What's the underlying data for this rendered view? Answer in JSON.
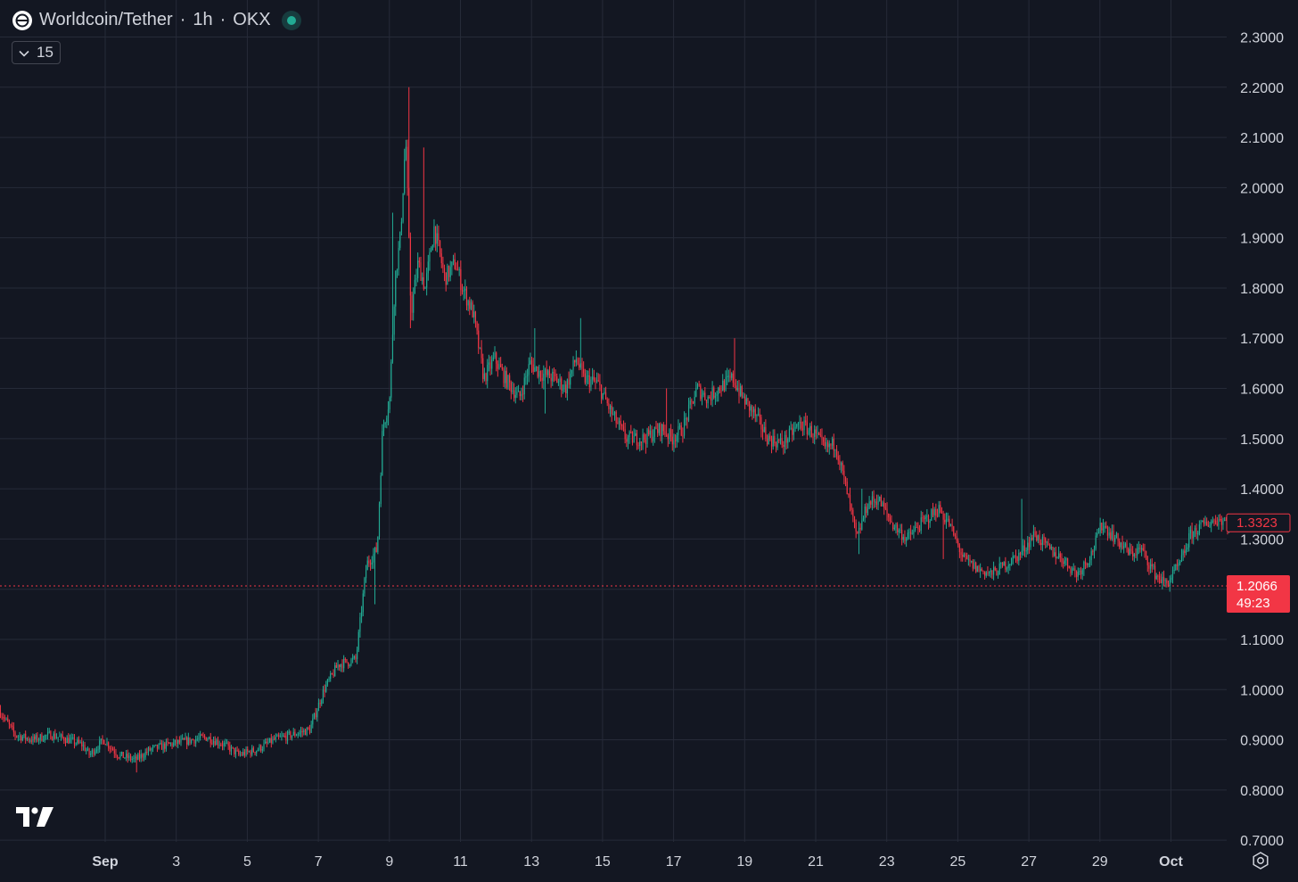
{
  "legend": {
    "symbol": "Worldcoin/Tether",
    "separator1": "·",
    "interval": "1h",
    "separator2": "·",
    "exchange": "OKX",
    "indicators_count": "15"
  },
  "price_tags": {
    "last_price": "1.3323",
    "crosshair_price": "1.2066",
    "countdown": "49:23"
  },
  "colors": {
    "background": "#131722",
    "grid": "#262b38",
    "up": "#22ab94",
    "down": "#f23645",
    "text": "#d1d4dc"
  },
  "icons": [
    "worldcoin-icon",
    "chevron-down-icon",
    "tradingview-logo-icon",
    "settings-icon",
    "status-dot-icon"
  ],
  "chart_data": {
    "type": "candlestick",
    "title": "Worldcoin/Tether · 1h · OKX",
    "y_ticks": [
      "2.3000",
      "2.2000",
      "2.1000",
      "2.0000",
      "1.9000",
      "1.8000",
      "1.7000",
      "1.6000",
      "1.5000",
      "1.4000",
      "1.3000",
      "1.1000",
      "1.0000",
      "0.9000",
      "0.8000",
      "0.7000"
    ],
    "x_ticks": [
      {
        "label": "Sep",
        "day": 1,
        "bold": true
      },
      {
        "label": "3",
        "day": 3
      },
      {
        "label": "5",
        "day": 5
      },
      {
        "label": "7",
        "day": 7
      },
      {
        "label": "9",
        "day": 9
      },
      {
        "label": "11",
        "day": 11
      },
      {
        "label": "13",
        "day": 13
      },
      {
        "label": "15",
        "day": 15
      },
      {
        "label": "17",
        "day": 17
      },
      {
        "label": "19",
        "day": 19
      },
      {
        "label": "21",
        "day": 21
      },
      {
        "label": "23",
        "day": 23
      },
      {
        "label": "25",
        "day": 25
      },
      {
        "label": "27",
        "day": 27
      },
      {
        "label": "29",
        "day": 29
      },
      {
        "label": "Oct",
        "day": 31,
        "bold": true
      }
    ],
    "x_range_days": [
      -1.95,
      32.7
    ],
    "ylim": [
      0.7,
      2.3
    ],
    "grid": true,
    "bars_per_day": 24,
    "price_path": [
      [
        -1.95,
        0.96
      ],
      [
        -1.5,
        0.91
      ],
      [
        -1.0,
        0.9
      ],
      [
        -0.5,
        0.91
      ],
      [
        0.0,
        0.9
      ],
      [
        0.4,
        0.89
      ],
      [
        0.6,
        0.87
      ],
      [
        1.0,
        0.9
      ],
      [
        1.4,
        0.87
      ],
      [
        1.9,
        0.86
      ],
      [
        2.3,
        0.88
      ],
      [
        2.8,
        0.89
      ],
      [
        3.5,
        0.9
      ],
      [
        3.9,
        0.905
      ],
      [
        4.4,
        0.89
      ],
      [
        4.8,
        0.87
      ],
      [
        5.3,
        0.88
      ],
      [
        5.8,
        0.9
      ],
      [
        6.3,
        0.91
      ],
      [
        6.8,
        0.92
      ],
      [
        7.2,
        1.0
      ],
      [
        7.6,
        1.05
      ],
      [
        8.1,
        1.06
      ],
      [
        8.4,
        1.25
      ],
      [
        8.7,
        1.28
      ],
      [
        8.85,
        1.52
      ],
      [
        9.05,
        1.58
      ],
      [
        9.2,
        1.82
      ],
      [
        9.35,
        1.9
      ],
      [
        9.5,
        2.1
      ],
      [
        9.65,
        1.75
      ],
      [
        9.85,
        1.85
      ],
      [
        10.05,
        1.8
      ],
      [
        10.3,
        1.92
      ],
      [
        10.6,
        1.82
      ],
      [
        10.9,
        1.85
      ],
      [
        11.1,
        1.8
      ],
      [
        11.4,
        1.75
      ],
      [
        11.7,
        1.62
      ],
      [
        12.0,
        1.66
      ],
      [
        12.3,
        1.62
      ],
      [
        12.7,
        1.58
      ],
      [
        13.0,
        1.65
      ],
      [
        13.3,
        1.63
      ],
      [
        13.7,
        1.62
      ],
      [
        14.0,
        1.6
      ],
      [
        14.3,
        1.66
      ],
      [
        14.5,
        1.62
      ],
      [
        14.9,
        1.61
      ],
      [
        15.3,
        1.55
      ],
      [
        15.7,
        1.5
      ],
      [
        16.2,
        1.5
      ],
      [
        16.7,
        1.52
      ],
      [
        17.0,
        1.5
      ],
      [
        17.3,
        1.52
      ],
      [
        17.7,
        1.6
      ],
      [
        18.0,
        1.58
      ],
      [
        18.3,
        1.6
      ],
      [
        18.7,
        1.62
      ],
      [
        19.0,
        1.58
      ],
      [
        19.3,
        1.55
      ],
      [
        19.7,
        1.5
      ],
      [
        20.1,
        1.49
      ],
      [
        20.6,
        1.53
      ],
      [
        21.0,
        1.51
      ],
      [
        21.3,
        1.48
      ],
      [
        21.6,
        1.49
      ],
      [
        21.9,
        1.4
      ],
      [
        22.2,
        1.3
      ],
      [
        22.5,
        1.37
      ],
      [
        22.8,
        1.38
      ],
      [
        23.2,
        1.33
      ],
      [
        23.6,
        1.3
      ],
      [
        24.0,
        1.33
      ],
      [
        24.5,
        1.36
      ],
      [
        24.8,
        1.33
      ],
      [
        25.2,
        1.26
      ],
      [
        25.6,
        1.24
      ],
      [
        26.0,
        1.23
      ],
      [
        26.4,
        1.25
      ],
      [
        26.8,
        1.27
      ],
      [
        27.2,
        1.31
      ],
      [
        27.6,
        1.28
      ],
      [
        28.0,
        1.26
      ],
      [
        28.4,
        1.23
      ],
      [
        28.8,
        1.27
      ],
      [
        29.1,
        1.33
      ],
      [
        29.5,
        1.3
      ],
      [
        29.9,
        1.27
      ],
      [
        30.2,
        1.28
      ],
      [
        30.6,
        1.23
      ],
      [
        30.9,
        1.21
      ],
      [
        31.3,
        1.25
      ],
      [
        31.6,
        1.31
      ],
      [
        32.0,
        1.33
      ],
      [
        32.4,
        1.34
      ],
      [
        32.7,
        1.3323
      ]
    ],
    "spikes": [
      {
        "day": 9.55,
        "high": 2.2
      },
      {
        "day": 9.95,
        "high": 2.08
      },
      {
        "day": 9.1,
        "high": 1.95
      },
      {
        "day": 13.1,
        "high": 1.72
      },
      {
        "day": 14.4,
        "high": 1.74
      },
      {
        "day": 16.8,
        "high": 1.6
      },
      {
        "day": 18.7,
        "high": 1.7
      },
      {
        "day": 22.3,
        "high": 1.4
      },
      {
        "day": 26.8,
        "high": 1.38
      },
      {
        "day": 29.1,
        "high": 1.34
      },
      {
        "day": 32.4,
        "high": 1.35
      }
    ],
    "dips": [
      {
        "day": 1.9,
        "low": 0.835
      },
      {
        "day": 8.6,
        "low": 1.17
      },
      {
        "day": 9.6,
        "low": 1.72
      },
      {
        "day": 13.4,
        "low": 1.55
      },
      {
        "day": 16.2,
        "low": 1.47
      },
      {
        "day": 22.2,
        "low": 1.27
      },
      {
        "day": 24.6,
        "low": 1.26
      },
      {
        "day": 30.95,
        "low": 1.195
      }
    ],
    "last_price": 1.3323,
    "crosshair_price": 1.2066
  }
}
